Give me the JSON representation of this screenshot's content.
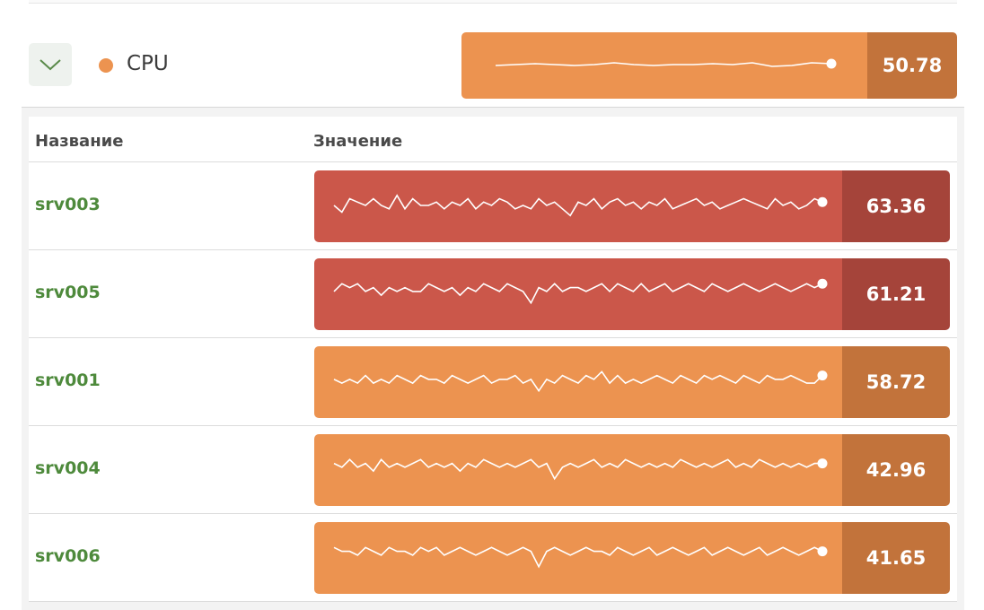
{
  "colors": {
    "orange": "#ec9350",
    "orange_dark": "#c2733b",
    "red": "#cb574a",
    "red_dark": "#a5443a",
    "name_green": "#4e8a3c",
    "dot_orange": "#ec9350"
  },
  "header": {
    "collapse_icon": "chevron-down-icon",
    "metric_name": "CPU",
    "summary_value": "50.78",
    "summary_color": "orange",
    "summary_spark": [
      49,
      50,
      51,
      50,
      49,
      50,
      52,
      50,
      49,
      50,
      50,
      51,
      50,
      52,
      48,
      49,
      52,
      51
    ]
  },
  "table": {
    "columns": [
      "Название",
      "Значение"
    ],
    "rows": [
      {
        "name": "srv003",
        "value": "63.36",
        "color": "red",
        "spark": [
          62,
          60,
          64,
          63,
          62,
          64,
          62,
          61,
          65,
          61,
          64,
          62,
          62,
          63,
          61,
          63,
          62,
          64,
          61,
          63,
          62,
          64,
          63,
          61,
          62,
          61,
          64,
          62,
          63,
          61,
          59,
          63,
          62,
          64,
          61,
          63,
          64,
          62,
          63,
          61,
          63,
          62,
          64,
          61,
          62,
          63,
          64,
          62,
          63,
          61,
          62,
          63,
          64,
          63,
          62,
          61,
          64,
          62,
          63,
          61,
          62,
          64,
          63
        ]
      },
      {
        "name": "srv005",
        "value": "61.21",
        "color": "red",
        "spark": [
          60,
          62,
          61,
          62,
          60,
          61,
          59,
          61,
          60,
          61,
          60,
          60,
          62,
          61,
          60,
          61,
          59,
          61,
          60,
          62,
          61,
          60,
          62,
          61,
          60,
          57,
          61,
          60,
          62,
          60,
          61,
          61,
          60,
          61,
          62,
          60,
          62,
          61,
          60,
          62,
          60,
          61,
          62,
          60,
          61,
          62,
          61,
          60,
          62,
          61,
          60,
          61,
          62,
          61,
          60,
          61,
          62,
          61,
          60,
          61,
          62,
          61,
          62
        ]
      },
      {
        "name": "srv001",
        "value": "58.72",
        "color": "orange",
        "spark": [
          58,
          57,
          58,
          57,
          59,
          57,
          58,
          57,
          59,
          58,
          57,
          59,
          58,
          58,
          57,
          59,
          58,
          57,
          58,
          59,
          57,
          58,
          58,
          59,
          57,
          58,
          55,
          58,
          57,
          59,
          58,
          57,
          59,
          58,
          60,
          57,
          59,
          57,
          58,
          57,
          58,
          59,
          58,
          57,
          59,
          58,
          57,
          59,
          58,
          59,
          58,
          57,
          59,
          58,
          57,
          59,
          58,
          58,
          59,
          58,
          57,
          57,
          59
        ]
      },
      {
        "name": "srv004",
        "value": "42.96",
        "color": "orange",
        "spark": [
          43,
          42,
          44,
          42,
          43,
          41,
          44,
          42,
          43,
          42,
          43,
          44,
          42,
          43,
          42,
          43,
          41,
          43,
          42,
          44,
          43,
          42,
          43,
          42,
          43,
          44,
          42,
          43,
          39,
          42,
          43,
          42,
          43,
          44,
          42,
          43,
          42,
          44,
          43,
          42,
          43,
          42,
          43,
          42,
          44,
          43,
          42,
          43,
          42,
          43,
          44,
          42,
          43,
          42,
          44,
          43,
          42,
          43,
          42,
          43,
          42,
          43,
          43
        ]
      },
      {
        "name": "srv006",
        "value": "41.65",
        "color": "orange",
        "spark": [
          42,
          41,
          41,
          40,
          42,
          41,
          40,
          42,
          41,
          41,
          40,
          42,
          41,
          42,
          40,
          41,
          42,
          41,
          40,
          41,
          42,
          41,
          40,
          41,
          42,
          41,
          37,
          41,
          42,
          41,
          40,
          41,
          42,
          41,
          41,
          40,
          42,
          41,
          40,
          41,
          42,
          40,
          41,
          42,
          41,
          40,
          41,
          42,
          40,
          41,
          42,
          41,
          40,
          41,
          42,
          40,
          41,
          42,
          41,
          40,
          41,
          42,
          41
        ]
      }
    ]
  }
}
